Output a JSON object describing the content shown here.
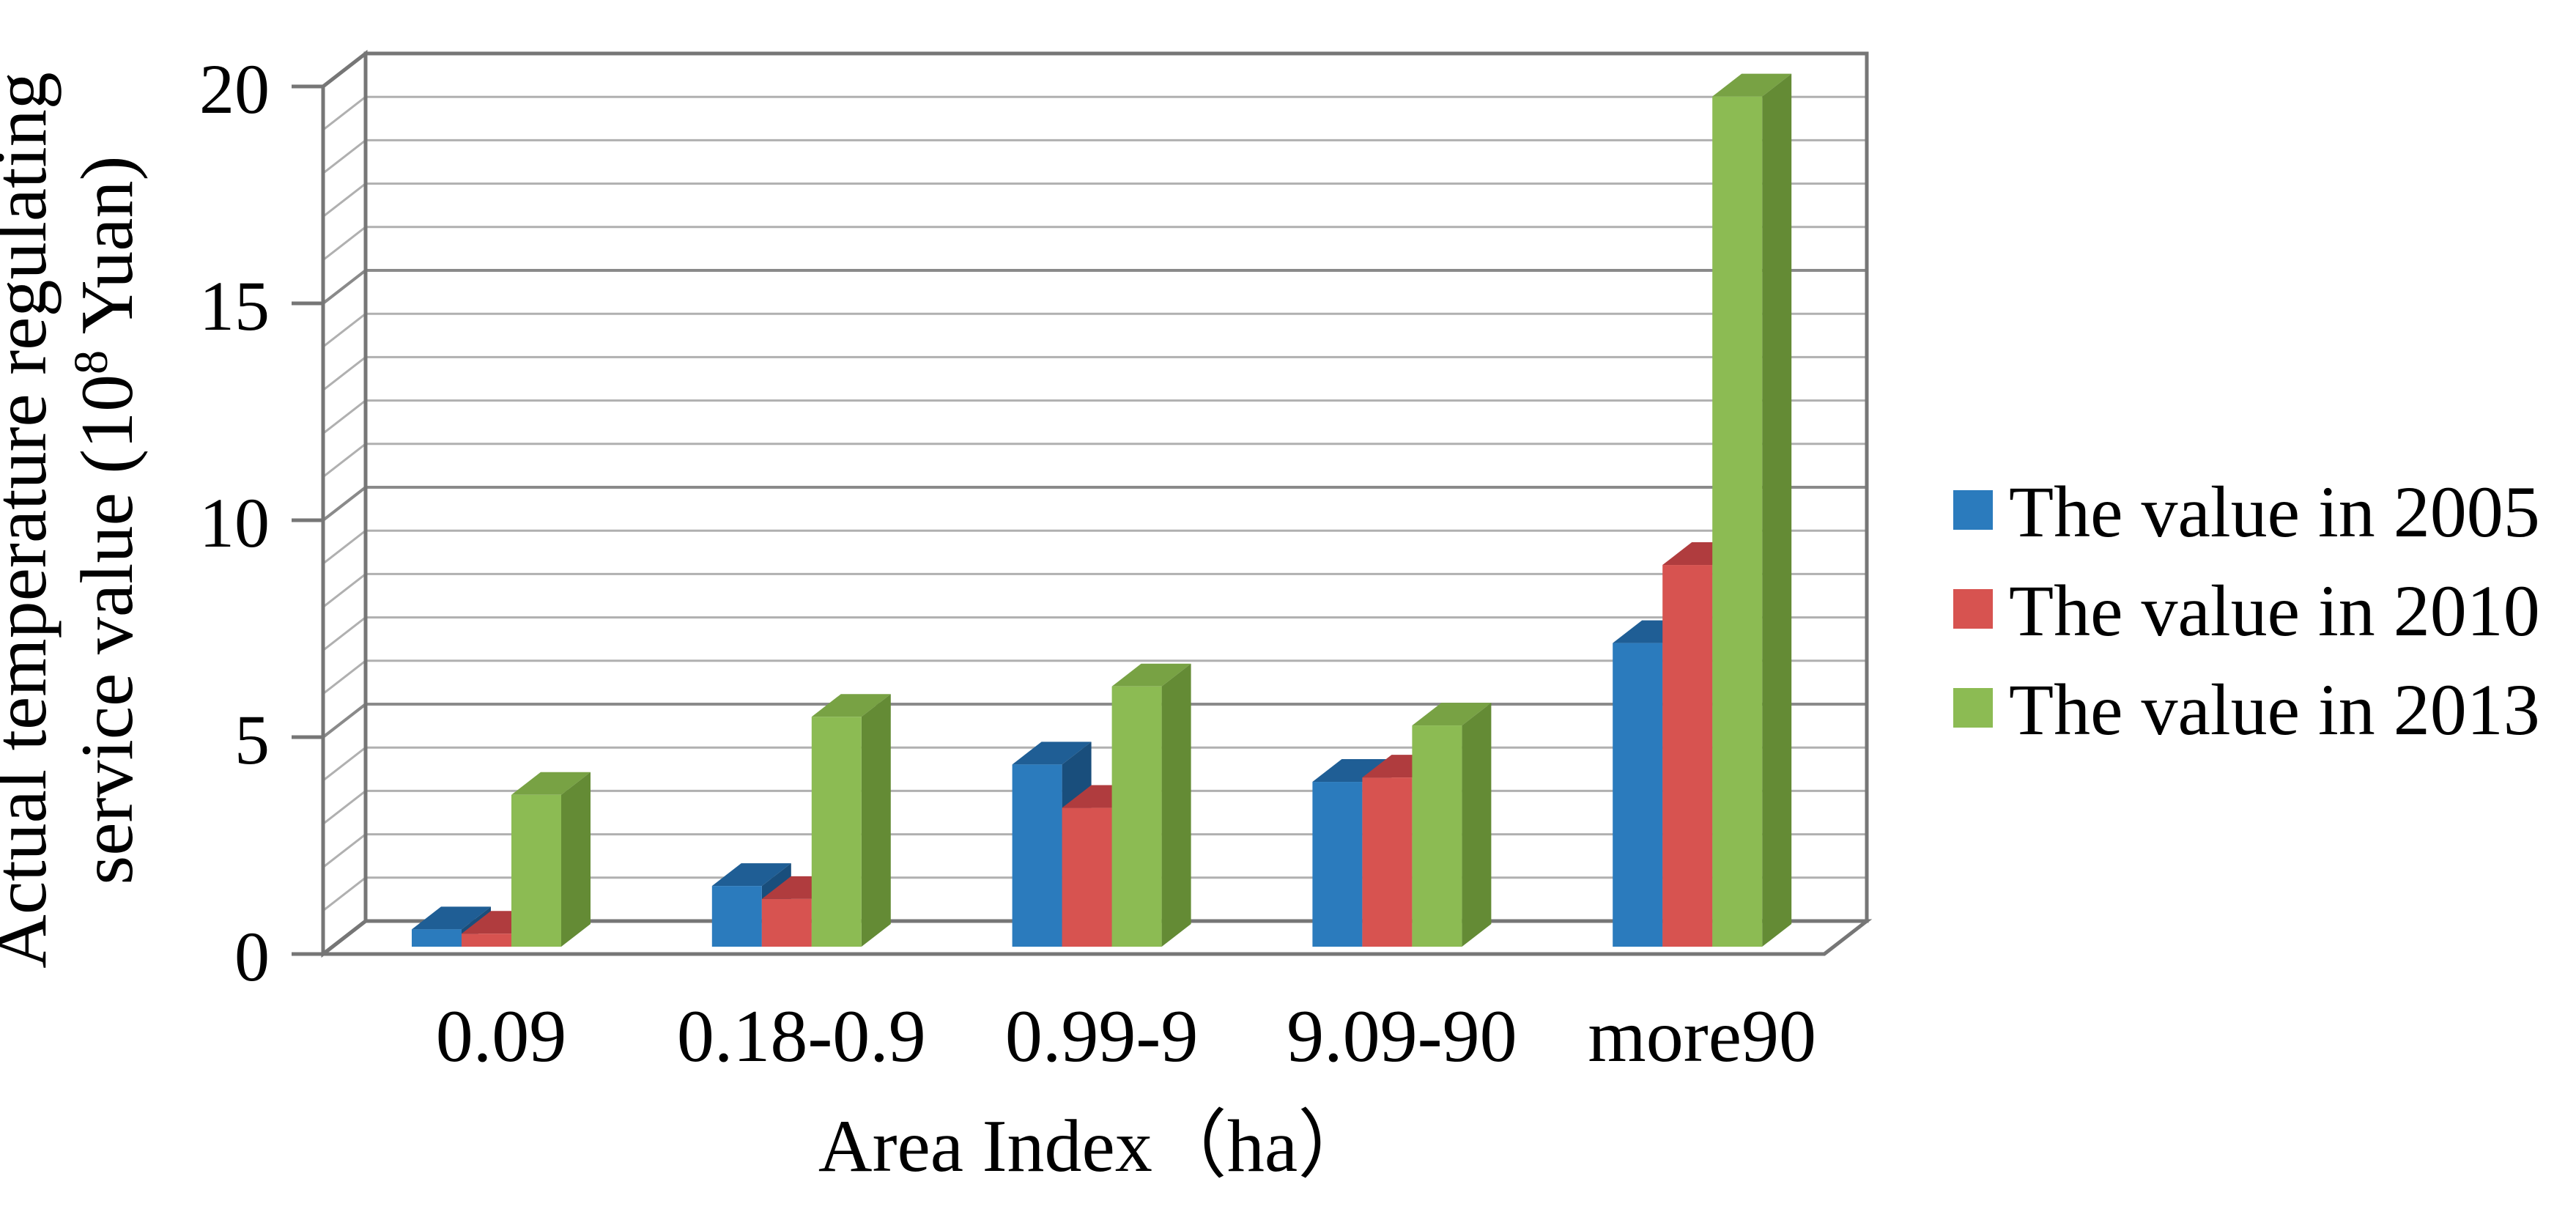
{
  "chart_data": {
    "type": "bar",
    "style": "3d-clustered-column",
    "title": "",
    "categories": [
      "0.09",
      "0.18-0.9",
      "0.99-9",
      "9.09-90",
      "more90"
    ],
    "series": [
      {
        "name": "The value in 2005",
        "color": "#2B7BBD",
        "values": [
          0.4,
          1.4,
          4.2,
          3.8,
          7.0
        ]
      },
      {
        "name": "The value in 2010",
        "color": "#D75350",
        "values": [
          0.3,
          1.1,
          3.2,
          3.9,
          8.8
        ]
      },
      {
        "name": "The value in 2013",
        "color": "#8CBB53",
        "values": [
          3.5,
          5.3,
          6.0,
          5.1,
          19.6
        ]
      }
    ],
    "xlabel": "Area Index（ha）",
    "ylabel_line1": "Actual temperature regulating",
    "ylabel_line2": "service value (10⁸ Yuan)",
    "ylim": [
      0,
      20
    ],
    "y_major_ticks": [
      0,
      5,
      10,
      15,
      20
    ],
    "y_minor_step": 1,
    "grid": true,
    "legend_position": "right"
  },
  "y_axis": {
    "title_line1": "Actual temperature regulating",
    "title_line2_pre": "service value (10",
    "title_sup": "8",
    "title_line2_post": " Yuan)"
  },
  "x_axis": {
    "title": "Area Index（ha）"
  },
  "colors": {
    "bar_fronts": [
      "#2B7BBD",
      "#D75350",
      "#8CBB53"
    ],
    "bar_tops": [
      "#1F5E95",
      "#B03C3E",
      "#78A244"
    ],
    "bar_sides": [
      "#194E7C",
      "#A03538",
      "#648B35"
    ],
    "gridline_minor": "#b0b0b0",
    "gridline_major": "#8a8a8a",
    "frame": "#767676",
    "text": "#000000"
  }
}
